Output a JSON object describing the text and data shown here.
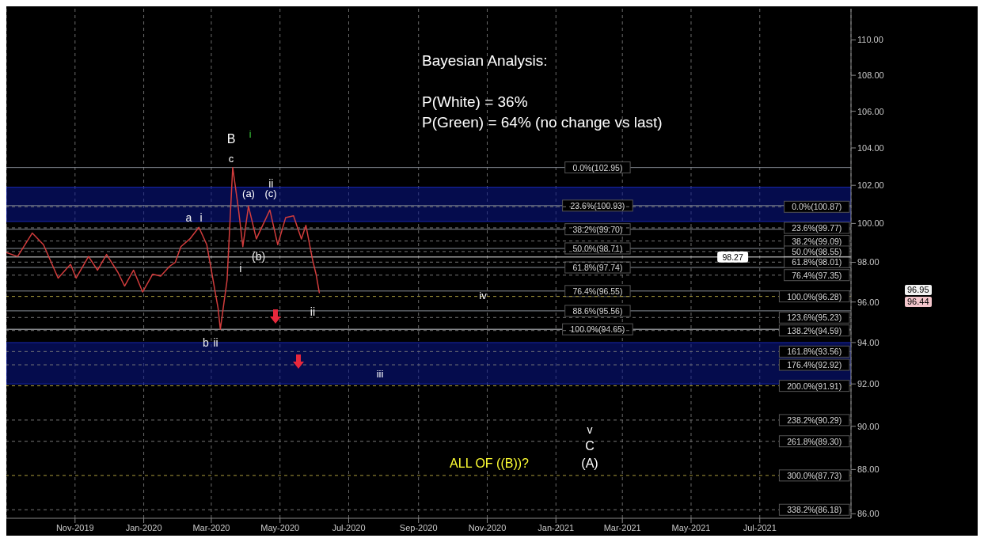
{
  "chart_data": {
    "type": "line",
    "log": true,
    "grid": "x",
    "x": [
      "2019-09-01",
      "2019-09-11",
      "2019-09-24",
      "2019-10-04",
      "2019-10-17",
      "2019-10-28",
      "2019-11-02",
      "2019-11-13",
      "2019-11-21",
      "2019-11-29",
      "2019-12-09",
      "2019-12-15",
      "2019-12-23",
      "2019-12-31",
      "2020-01-09",
      "2020-01-16",
      "2020-01-24",
      "2020-01-29",
      "2020-02-03",
      "2020-02-11",
      "2020-02-19",
      "2020-02-26",
      "2020-03-07",
      "2020-03-09",
      "2020-03-15",
      "2020-03-20",
      "2020-03-25",
      "2020-03-29",
      "2020-04-03",
      "2020-04-10",
      "2020-04-22",
      "2020-04-29",
      "2020-05-06",
      "2020-05-13",
      "2020-05-20",
      "2020-05-24",
      "2020-05-30",
      "2020-06-02",
      "2020-06-05"
    ],
    "series": [
      {
        "color": "#d23c3c",
        "values": [
          98.5,
          98.3,
          99.5,
          98.9,
          97.2,
          97.9,
          97.2,
          98.3,
          97.6,
          98.4,
          97.5,
          96.8,
          97.6,
          96.5,
          97.4,
          97.3,
          97.8,
          98.0,
          98.8,
          99.2,
          99.8,
          98.9,
          95.7,
          94.65,
          97.1,
          102.95,
          100.8,
          98.8,
          100.9,
          99.2,
          100.7,
          98.9,
          100.3,
          100.4,
          99.2,
          99.9,
          98.1,
          97.4,
          96.44
        ]
      }
    ],
    "xlim": [
      "2019-09-01",
      "2021-09-20"
    ],
    "xticks": [
      {
        "value": "2019-11-01",
        "label": "Nov-2019"
      },
      {
        "value": "2020-01-01",
        "label": "Jan-2020"
      },
      {
        "value": "2020-03-01",
        "label": "Mar-2020"
      },
      {
        "value": "2020-05-01",
        "label": "May-2020"
      },
      {
        "value": "2020-07-01",
        "label": "Jul-2020"
      },
      {
        "value": "2020-09-01",
        "label": "Sep-2020"
      },
      {
        "value": "2020-11-01",
        "label": "Nov-2020"
      },
      {
        "value": "2021-01-01",
        "label": "Jan-2021"
      },
      {
        "value": "2021-03-01",
        "label": "Mar-2021"
      },
      {
        "value": "2021-05-01",
        "label": "May-2021"
      },
      {
        "value": "2021-07-01",
        "label": "Jul-2021"
      }
    ],
    "ylim": [
      85.8,
      111.8
    ],
    "yticks": [
      {
        "value": 86,
        "label": "86.00"
      },
      {
        "value": 88,
        "label": "88.00"
      },
      {
        "value": 90,
        "label": "90.00"
      },
      {
        "value": 92,
        "label": "92.00"
      },
      {
        "value": 94,
        "label": "94.00"
      },
      {
        "value": 96,
        "label": "96.00"
      },
      {
        "value": 98,
        "label": "98.00"
      },
      {
        "value": 100,
        "label": "100.00"
      },
      {
        "value": 102,
        "label": "102.00"
      },
      {
        "value": 104,
        "label": "104.00"
      },
      {
        "value": 106,
        "label": "106.00"
      },
      {
        "value": 108,
        "label": "108.00"
      },
      {
        "value": 110,
        "label": "110.00"
      }
    ],
    "bands": [
      {
        "axis": "y",
        "from": 100.1,
        "to": 101.9,
        "color": "#0a168c"
      },
      {
        "axis": "y",
        "from": 92.0,
        "to": 94.0,
        "color": "#0a168c"
      }
    ],
    "ref_lines": [
      {
        "axis": "y",
        "value": 102.95,
        "label": "0.0%(102.95)",
        "color": "#8a9099",
        "line_style": "solid"
      },
      {
        "axis": "y",
        "value": 100.93,
        "label": "23.6%(100.93)",
        "color": "#8a9099",
        "line_style": "solid"
      },
      {
        "axis": "y",
        "value": 99.7,
        "label": "38.2%(99.70)",
        "color": "#8a9099",
        "line_style": "solid"
      },
      {
        "axis": "y",
        "value": 98.71,
        "label": "50.0%(98.71)",
        "color": "#8a9099",
        "line_style": "solid"
      },
      {
        "axis": "y",
        "value": 97.74,
        "label": "61.8%(97.74)",
        "color": "#8a9099",
        "line_style": "solid"
      },
      {
        "axis": "y",
        "value": 96.55,
        "label": "76.4%(96.55)",
        "color": "#8a9099",
        "line_style": "solid"
      },
      {
        "axis": "y",
        "value": 95.56,
        "label": "88.6%(95.56)",
        "color": "#8a9099",
        "line_style": "solid"
      },
      {
        "axis": "y",
        "value": 94.65,
        "label": "100.0%(94.65)",
        "color": "#c8ccd2",
        "line_style": "solid"
      },
      {
        "axis": "y",
        "value": 100.87,
        "label": "0.0%(100.87)",
        "color": "#777777",
        "line_style": "dashed"
      },
      {
        "axis": "y",
        "value": 99.77,
        "label": "23.6%(99.77)",
        "color": "#777777",
        "line_style": "dashed"
      },
      {
        "axis": "y",
        "value": 99.09,
        "label": "38.2%(99.09)",
        "color": "#777777",
        "line_style": "dashed"
      },
      {
        "axis": "y",
        "value": 98.55,
        "label": "50.0%(98.55)",
        "color": "#777777",
        "line_style": "dashed"
      },
      {
        "axis": "y",
        "value": 98.01,
        "label": "61.8%(98.01)",
        "color": "#777777",
        "line_style": "dashed"
      },
      {
        "axis": "y",
        "value": 97.35,
        "label": "76.4%(97.35)",
        "color": "#777777",
        "line_style": "dashed"
      },
      {
        "axis": "y",
        "value": 96.28,
        "label": "100.0%(96.28)",
        "color": "#a89a3c",
        "line_style": "dashed"
      },
      {
        "axis": "y",
        "value": 95.23,
        "label": "123.6%(95.23)",
        "color": "#777777",
        "line_style": "dashed"
      },
      {
        "axis": "y",
        "value": 94.59,
        "label": "138.2%(94.59)",
        "color": "#777777",
        "line_style": "dashed"
      },
      {
        "axis": "y",
        "value": 93.56,
        "label": "161.8%(93.56)",
        "color": "#777777",
        "line_style": "dashed"
      },
      {
        "axis": "y",
        "value": 92.92,
        "label": "176.4%(92.92)",
        "color": "#777777",
        "line_style": "dashed"
      },
      {
        "axis": "y",
        "value": 91.91,
        "label": "200.0%(91.91)",
        "color": "#a89a3c",
        "line_style": "dashed"
      },
      {
        "axis": "y",
        "value": 90.29,
        "label": "238.2%(90.29)",
        "color": "#777777",
        "line_style": "dashed"
      },
      {
        "axis": "y",
        "value": 89.3,
        "label": "261.8%(89.30)",
        "color": "#777777",
        "line_style": "dashed"
      },
      {
        "axis": "y",
        "value": 87.73,
        "label": "300.0%(87.73)",
        "color": "#a89a3c",
        "line_style": "dashed"
      },
      {
        "axis": "y",
        "value": 86.18,
        "label": "338.2%(86.18)",
        "color": "#777777",
        "line_style": "dashed"
      },
      {
        "axis": "y",
        "value": 98.27,
        "label": "98.27",
        "color": "#e8e8e8"
      }
    ],
    "annotations": [
      "Bayesian Analysis:",
      "P(White) = 36%",
      "P(Green) = 64% (no change vs last)",
      "96.95",
      "96.44",
      "B",
      "c",
      "i",
      "(a)",
      "(c)",
      "iv",
      "v",
      "C",
      "(A)",
      "ALL OF ((B))?",
      "iii",
      {
        "text": "a",
        "x": "2020-02-10",
        "y": 100.3
      },
      {
        "text": "i",
        "x": "2020-02-21",
        "y": 100.3
      },
      {
        "text": "b",
        "x": "2020-02-25",
        "y": 94.0
      },
      {
        "text": "ii",
        "x": "2020-03-05",
        "y": 94.0
      },
      {
        "text": "ii",
        "x": "2020-04-23",
        "y": 102.1
      },
      {
        "text": "(b)",
        "x": "2020-04-12",
        "y": 98.3
      },
      {
        "text": "i",
        "x": "2020-03-27",
        "y": 97.7
      },
      {
        "text": "ii",
        "x": "2020-05-30",
        "y": 95.5
      }
    ]
  }
}
